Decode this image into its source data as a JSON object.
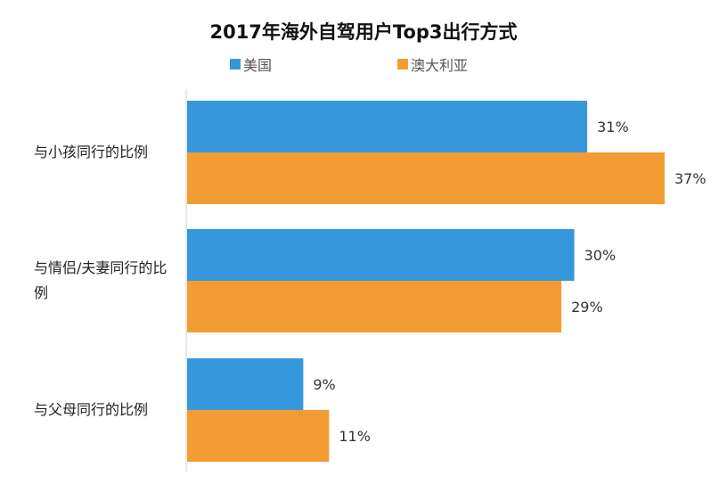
{
  "chart_data": {
    "type": "bar",
    "orientation": "horizontal",
    "title": "2017年海外自驾用户Top3出行方式",
    "categories": [
      "与小孩同行的比例",
      "与情侣/夫妻同行的比例",
      "与父母同行的比例"
    ],
    "series": [
      {
        "name": "美国",
        "color": "#3598DC",
        "values": [
          31,
          30,
          9
        ],
        "labels": [
          "31%",
          "30%",
          "9%"
        ]
      },
      {
        "name": "澳大利亚",
        "color": "#F39C33",
        "values": [
          37,
          29,
          11
        ],
        "labels": [
          "37%",
          "29%",
          "11%"
        ]
      }
    ],
    "xlim": [
      0,
      37
    ],
    "legend": "top",
    "grid": false,
    "xlabel": "",
    "ylabel": ""
  }
}
